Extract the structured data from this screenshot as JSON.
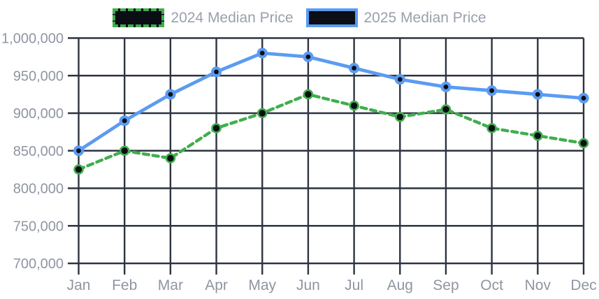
{
  "chart_data": {
    "type": "line",
    "title": "",
    "xlabel": "",
    "ylabel": "",
    "categories": [
      "Jan",
      "Feb",
      "Mar",
      "Apr",
      "May",
      "Jun",
      "Jul",
      "Aug",
      "Sep",
      "Oct",
      "Nov",
      "Dec"
    ],
    "series": [
      {
        "id": "2024",
        "name": "2024 Median Price",
        "values": [
          825000,
          850000,
          840000,
          880000,
          900000,
          925000,
          910000,
          895000,
          905000,
          880000,
          870000,
          860000
        ],
        "color": "#41ad4e",
        "line_style": "dashed",
        "dash": "8 6",
        "line_width": 4.4,
        "point_fill": "#0b0e14",
        "point_radius": 6,
        "point_border": 2.6
      },
      {
        "id": "2025",
        "name": "2025 Median Price",
        "values": [
          850000,
          890000,
          925000,
          955000,
          980000,
          975000,
          960000,
          945000,
          935000,
          930000,
          925000,
          920000
        ],
        "color": "#5b9bf2",
        "line_style": "solid",
        "dash": "",
        "line_width": 4.8,
        "point_fill": "#0b0e14",
        "point_radius": 5.5,
        "point_border": 4.2
      }
    ],
    "ylim": [
      700000,
      1000000
    ],
    "ytick_step": 50000,
    "ytick_labels": [
      "700,000",
      "750,000",
      "800,000",
      "850,000",
      "900,000",
      "950,000",
      "1,000,000"
    ],
    "grid": true,
    "legend_position": "top",
    "colors": {
      "grid": "#2d3440",
      "tick_text": "#8f95a1",
      "legend_text": "#9aa0ac",
      "background": "#ffffff"
    }
  }
}
